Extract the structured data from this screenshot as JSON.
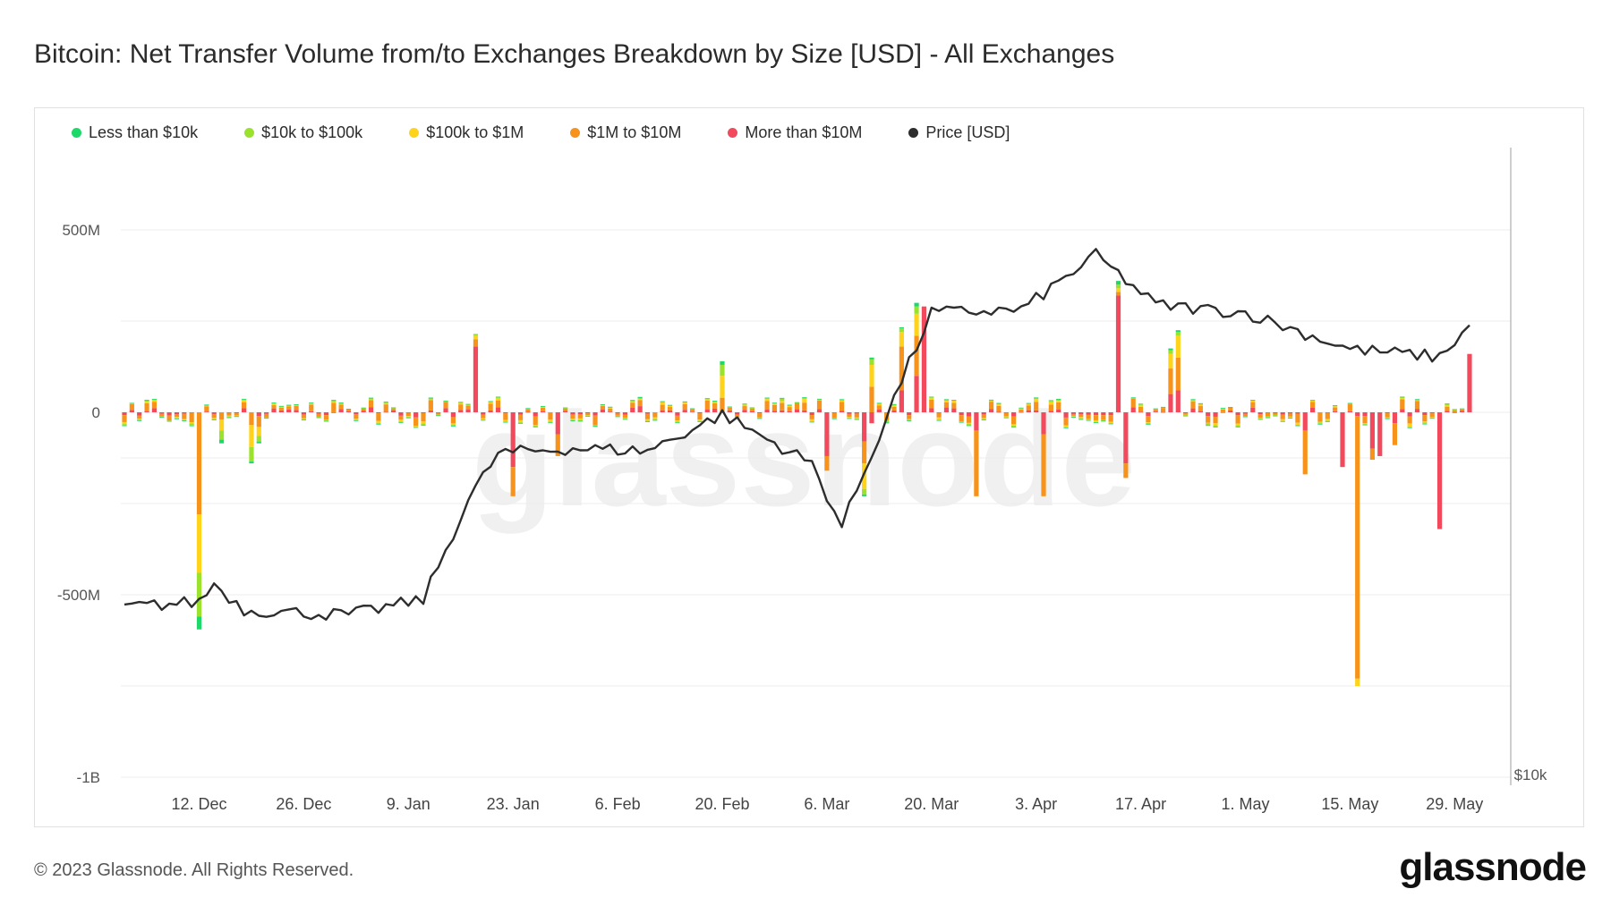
{
  "page": {
    "title": "Bitcoin: Net Transfer Volume from/to Exchanges Breakdown by Size [USD] - All Exchanges",
    "copyright": "© 2023 Glassnode. All Rights Reserved.",
    "brand": "glassnode",
    "watermark": "glassnode"
  },
  "chart_data": {
    "type": "bar",
    "stacked": true,
    "secondary_line": "Price [USD]",
    "title": "Bitcoin: Net Transfer Volume from/to Exchanges Breakdown by Size [USD] - All Exchanges",
    "ylim": [
      -1000,
      500
    ],
    "y_unit": "M",
    "yticks": [
      {
        "value": 500,
        "label": "500M"
      },
      {
        "value": 0,
        "label": "0"
      },
      {
        "value": -500,
        "label": "-500M"
      },
      {
        "value": -1000,
        "label": "-1B"
      }
    ],
    "right_axis_label": "$10k",
    "x_ticks": [
      {
        "day": 10,
        "label": "12. Dec"
      },
      {
        "day": 24,
        "label": "26. Dec"
      },
      {
        "day": 38,
        "label": "9. Jan"
      },
      {
        "day": 52,
        "label": "23. Jan"
      },
      {
        "day": 66,
        "label": "6. Feb"
      },
      {
        "day": 80,
        "label": "20. Feb"
      },
      {
        "day": 94,
        "label": "6. Mar"
      },
      {
        "day": 108,
        "label": "20. Mar"
      },
      {
        "day": 122,
        "label": "3. Apr"
      },
      {
        "day": 136,
        "label": "17. Apr"
      },
      {
        "day": 150,
        "label": "1. May"
      },
      {
        "day": 164,
        "label": "15. May"
      },
      {
        "day": 178,
        "label": "29. May"
      }
    ],
    "legend_position": "top-left",
    "grid": true,
    "series": [
      {
        "name": "Less than $10k",
        "color": "#1fd86a"
      },
      {
        "name": "$10k to $100k",
        "color": "#9be22d"
      },
      {
        "name": "$100k to $1M",
        "color": "#ffd31a"
      },
      {
        "name": "$1M to $10M",
        "color": "#f7931a"
      },
      {
        "name": "More than $10M",
        "color": "#f24a5c"
      }
    ],
    "price_series": {
      "name": "Price [USD]",
      "color": "#2d2d2d"
    },
    "key_bars": [
      {
        "date": "10. Dec",
        "less_than_10k": -35,
        "10k_to_100k": -120,
        "100k_to_1m": -160,
        "1m_to_10m": -280,
        "more_than_10m": 0,
        "total": -595
      },
      {
        "date": "17. Jan",
        "less_than_10k": 0,
        "10k_to_100k": 0,
        "100k_to_1m": 0,
        "1m_to_10m": 0,
        "more_than_10m": 180,
        "total": 180
      },
      {
        "date": "20. Mar",
        "less_than_10k": 10,
        "10k_to_100k": 20,
        "100k_to_1m": 60,
        "1m_to_10m": 110,
        "more_than_10m": 100,
        "total": 390
      },
      {
        "date": "13. Apr",
        "less_than_10k": 10,
        "10k_to_100k": 10,
        "100k_to_1m": 10,
        "1m_to_10m": 10,
        "more_than_10m": 320,
        "total": 360
      },
      {
        "date": "15. May",
        "less_than_10k": 0,
        "10k_to_100k": 0,
        "100k_to_1m": -20,
        "1m_to_10m": -720,
        "more_than_10m": -10,
        "total": -750
      },
      {
        "date": "27. May",
        "less_than_10k": 0,
        "10k_to_100k": 0,
        "100k_to_1m": 0,
        "1m_to_10m": 0,
        "more_than_10m": -320,
        "total": -320
      },
      {
        "date": "31. May",
        "less_than_10k": 0,
        "10k_to_100k": 0,
        "100k_to_1m": 0,
        "1m_to_10m": 0,
        "more_than_10m": 160,
        "total": 160
      }
    ],
    "price_trend": [
      {
        "day": 0,
        "price": 16900
      },
      {
        "day": 10,
        "price": 17100
      },
      {
        "day": 12,
        "price": 17800
      },
      {
        "day": 16,
        "price": 16800
      },
      {
        "day": 30,
        "price": 16600
      },
      {
        "day": 40,
        "price": 17200
      },
      {
        "day": 46,
        "price": 21000
      },
      {
        "day": 50,
        "price": 22800
      },
      {
        "day": 60,
        "price": 23000
      },
      {
        "day": 70,
        "price": 22900
      },
      {
        "day": 80,
        "price": 24300
      },
      {
        "day": 92,
        "price": 22400
      },
      {
        "day": 96,
        "price": 20000
      },
      {
        "day": 104,
        "price": 25600
      },
      {
        "day": 108,
        "price": 28200
      },
      {
        "day": 120,
        "price": 28300
      },
      {
        "day": 130,
        "price": 30400
      },
      {
        "day": 138,
        "price": 28500
      },
      {
        "day": 150,
        "price": 28200
      },
      {
        "day": 164,
        "price": 26800
      },
      {
        "day": 176,
        "price": 26500
      },
      {
        "day": 180,
        "price": 27700
      }
    ]
  }
}
